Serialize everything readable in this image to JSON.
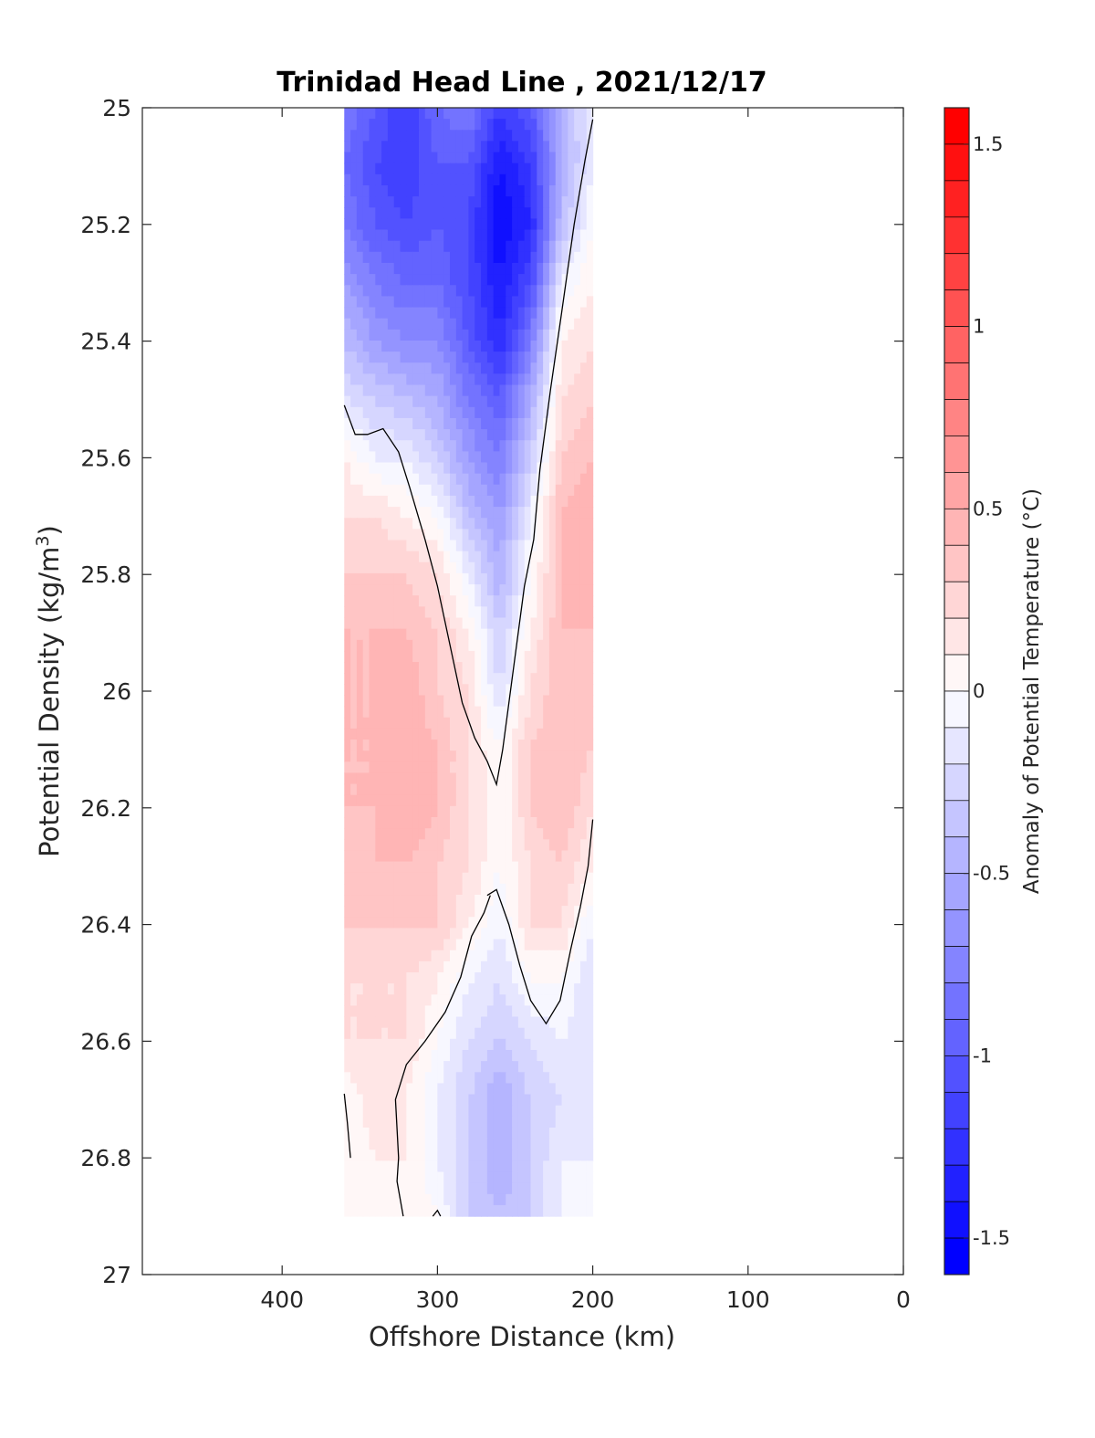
{
  "chart_data": {
    "type": "heatmap",
    "title": "Trinidad Head Line , 2021/12/17",
    "xlabel": "Offshore Distance (km)",
    "ylabel_main": "Potential Density (kg/m",
    "ylabel_sup": "3",
    "ylabel_close": ")",
    "colorbar_label": "Anomaly of Potential Temperature (°C)",
    "xlim": [
      490,
      0
    ],
    "ylim": [
      25,
      27
    ],
    "y_reversed": true,
    "x_reversed": true,
    "xticks": [
      400,
      300,
      200,
      100,
      0
    ],
    "xtick_labels": [
      "400",
      "300",
      "200",
      "100",
      "0"
    ],
    "yticks": [
      25,
      25.2,
      25.4,
      25.6,
      25.8,
      26,
      26.2,
      26.4,
      26.6,
      26.8,
      27
    ],
    "ytick_labels": [
      "25",
      "25.2",
      "25.4",
      "25.6",
      "25.8",
      "26",
      "26.2",
      "26.4",
      "26.6",
      "26.8",
      "27"
    ],
    "colorbar": {
      "range": [
        -1.6,
        1.6
      ],
      "step": 0.1,
      "ticks": [
        1.5,
        1,
        0.5,
        0,
        -0.5,
        -1,
        -1.5
      ],
      "tick_labels": [
        "1.5",
        "1",
        "0.5",
        "0",
        "-0.5",
        "-1",
        "-1.5"
      ],
      "colormap": "blue-white-red",
      "low_color": "#0000ff",
      "high_color": "#ff0000",
      "mid_color": "#ffffff"
    },
    "x": [
      360,
      340,
      320,
      300,
      280,
      260,
      240,
      220,
      200
    ],
    "y": [
      25.0,
      25.1,
      25.2,
      25.3,
      25.4,
      25.5,
      25.6,
      25.7,
      25.8,
      25.9,
      26.0,
      26.1,
      26.2,
      26.3,
      26.4,
      26.5,
      26.6,
      26.7,
      26.8,
      26.9
    ],
    "z": [
      [
        -0.8,
        -1.0,
        -1.2,
        -0.9,
        -0.8,
        -1.2,
        -1.0,
        -0.5,
        -0.1
      ],
      [
        -0.9,
        -1.1,
        -1.2,
        -1.0,
        -1.0,
        -1.4,
        -1.2,
        -0.5,
        -0.1
      ],
      [
        -0.8,
        -1.0,
        -1.1,
        -1.0,
        -1.1,
        -1.5,
        -1.3,
        -0.4,
        0.0
      ],
      [
        -0.6,
        -0.8,
        -0.9,
        -0.9,
        -1.1,
        -1.4,
        -1.1,
        -0.1,
        0.1
      ],
      [
        -0.4,
        -0.6,
        -0.7,
        -0.7,
        -1.0,
        -1.3,
        -0.8,
        0.1,
        0.2
      ],
      [
        -0.2,
        -0.3,
        -0.4,
        -0.5,
        -0.8,
        -1.0,
        -0.5,
        0.2,
        0.3
      ],
      [
        0.1,
        -0.1,
        -0.1,
        -0.3,
        -0.6,
        -0.8,
        -0.3,
        0.3,
        0.4
      ],
      [
        0.2,
        0.2,
        0.1,
        0.0,
        -0.4,
        -0.6,
        -0.1,
        0.4,
        0.5
      ],
      [
        0.3,
        0.3,
        0.3,
        0.2,
        -0.1,
        -0.5,
        0.0,
        0.4,
        0.5
      ],
      [
        0.4,
        0.4,
        0.4,
        0.3,
        0.1,
        -0.3,
        0.1,
        0.4,
        0.4
      ],
      [
        0.4,
        0.4,
        0.5,
        0.3,
        0.2,
        -0.2,
        0.2,
        0.4,
        0.3
      ],
      [
        0.4,
        0.4,
        0.5,
        0.4,
        0.2,
        0.0,
        0.3,
        0.4,
        0.3
      ],
      [
        0.4,
        0.4,
        0.5,
        0.4,
        0.2,
        0.0,
        0.3,
        0.4,
        0.2
      ],
      [
        0.3,
        0.4,
        0.4,
        0.3,
        0.2,
        0.0,
        0.2,
        0.3,
        0.1
      ],
      [
        0.3,
        0.3,
        0.3,
        0.3,
        0.1,
        -0.1,
        0.2,
        0.2,
        -0.1
      ],
      [
        0.2,
        0.2,
        0.2,
        0.1,
        -0.1,
        -0.2,
        0.0,
        0.0,
        -0.2
      ],
      [
        0.2,
        0.2,
        0.2,
        0.0,
        -0.2,
        -0.3,
        -0.2,
        -0.1,
        -0.2
      ],
      [
        0.0,
        0.2,
        0.1,
        -0.1,
        -0.3,
        -0.5,
        -0.3,
        -0.2,
        -0.2
      ],
      [
        0.0,
        0.1,
        0.1,
        -0.1,
        -0.3,
        -0.5,
        -0.3,
        -0.1,
        -0.1
      ],
      [
        0.0,
        0.0,
        0.1,
        0.0,
        -0.3,
        -0.4,
        -0.3,
        -0.1,
        -0.1
      ]
    ],
    "zero_contours": [
      [
        [
          360,
          25.51
        ],
        [
          353,
          25.56
        ],
        [
          345,
          25.56
        ],
        [
          335,
          25.55
        ],
        [
          325,
          25.59
        ],
        [
          318,
          25.65
        ],
        [
          308,
          25.74
        ],
        [
          300,
          25.82
        ],
        [
          292,
          25.92
        ],
        [
          284,
          26.02
        ],
        [
          276,
          26.08
        ],
        [
          268,
          26.12
        ],
        [
          262,
          26.16
        ],
        [
          258,
          26.1
        ],
        [
          254,
          26.02
        ],
        [
          249,
          25.92
        ],
        [
          244,
          25.82
        ],
        [
          238,
          25.74
        ],
        [
          234,
          25.62
        ],
        [
          227,
          25.48
        ],
        [
          220,
          25.35
        ],
        [
          212,
          25.2
        ],
        [
          205,
          25.09
        ],
        [
          200,
          25.02
        ]
      ],
      [
        [
          268,
          26.35
        ],
        [
          262,
          26.34
        ],
        [
          254,
          26.4
        ],
        [
          247,
          26.47
        ],
        [
          240,
          26.53
        ],
        [
          230,
          26.57
        ],
        [
          221,
          26.53
        ],
        [
          214,
          26.44
        ],
        [
          208,
          26.37
        ],
        [
          203,
          26.3
        ],
        [
          200,
          26.22
        ]
      ],
      [
        [
          322,
          26.9
        ],
        [
          326,
          26.84
        ],
        [
          325,
          26.8
        ],
        [
          327,
          26.7
        ],
        [
          320,
          26.64
        ],
        [
          308,
          26.6
        ],
        [
          295,
          26.55
        ],
        [
          285,
          26.49
        ],
        [
          278,
          26.42
        ],
        [
          270,
          26.38
        ],
        [
          266,
          26.35
        ]
      ],
      [
        [
          360,
          26.69
        ],
        [
          358,
          26.74
        ],
        [
          356,
          26.8
        ]
      ],
      [
        [
          303,
          26.9
        ],
        [
          300,
          26.89
        ],
        [
          298,
          26.9
        ]
      ]
    ]
  }
}
